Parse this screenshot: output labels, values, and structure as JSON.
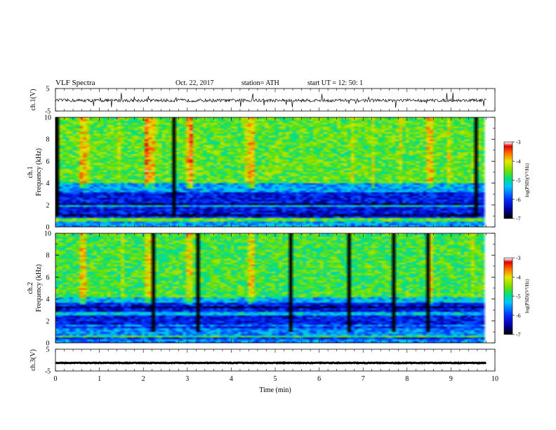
{
  "header": {
    "title": "VLF  Spectra",
    "date": "Oct. 22, 2017",
    "station": "station= ATH",
    "start": "start  UT  =    12: 50: 1"
  },
  "colors": {
    "colormap": [
      "#000000",
      "#0000aa",
      "#0030ff",
      "#00c8ff",
      "#00e080",
      "#70e000",
      "#e8e800",
      "#ff6000",
      "#e00000",
      "#ffffff"
    ]
  },
  "chart_data": [
    {
      "type": "line",
      "id": "ch1-waveform",
      "ylabel": "ch.1(V)",
      "ylim": [
        -5,
        5
      ],
      "yticks": [
        "5",
        "-5"
      ],
      "xlim": [
        0,
        10
      ],
      "summary": {
        "baseline_v": -0.3,
        "noise_amplitude_v": 0.7,
        "spike_max_v": 3.8,
        "spike_min_v": -3.2,
        "data_end_min": 9.8
      }
    },
    {
      "type": "heatmap",
      "id": "ch1-spectrogram",
      "channel_label": "ch.1",
      "ylabel": "Frequency  (kHz)",
      "ylim": [
        0,
        10
      ],
      "yticks": [
        "0",
        "2",
        "4",
        "6",
        "8",
        "10"
      ],
      "xlim": [
        0,
        10
      ],
      "data_end_min": 9.8,
      "colorbar": {
        "label": "log(PSD)(V²/Hz)",
        "range": [
          -7,
          -3
        ],
        "ticks": [
          "-3",
          "-4",
          "-5",
          "-6",
          "-7"
        ]
      },
      "bands_log_psd": [
        {
          "freq_khz": [
            0,
            0.5
          ],
          "level": -5.5
        },
        {
          "freq_khz": [
            0.5,
            0.8
          ],
          "level": -4.6
        },
        {
          "freq_khz": [
            0.8,
            3.2
          ],
          "level": -6.2
        },
        {
          "freq_khz": [
            3.2,
            4.0
          ],
          "level": -5.5
        },
        {
          "freq_khz": [
            4.0,
            10.0
          ],
          "level": -4.6
        }
      ],
      "hot_spots_min": [
        0.6,
        2.15,
        3.05,
        4.45,
        8.5
      ]
    },
    {
      "type": "heatmap",
      "id": "ch2-spectrogram",
      "channel_label": "ch.2",
      "ylabel": "Frequency  (kHz)",
      "ylim": [
        0,
        10
      ],
      "yticks": [
        "0",
        "2",
        "4",
        "6",
        "8",
        "10"
      ],
      "xlim": [
        0,
        10
      ],
      "data_end_min": 9.8,
      "colorbar": {
        "label": "log(PSD)(V²/Hz)",
        "range": [
          -7,
          -3
        ],
        "ticks": [
          "-3",
          "-4",
          "-5",
          "-6",
          "-7"
        ]
      },
      "bands_log_psd": [
        {
          "freq_khz": [
            0,
            1.7
          ],
          "level": -5.6
        },
        {
          "freq_khz": [
            1.7,
            3.6
          ],
          "level": -6.2
        },
        {
          "freq_khz": [
            3.6,
            4.2
          ],
          "level": -5.4
        },
        {
          "freq_khz": [
            4.2,
            10.0
          ],
          "level": -4.7
        }
      ],
      "hot_spots_min": [
        0.6,
        2.15,
        3.05,
        4.45,
        8.5
      ]
    },
    {
      "type": "line",
      "id": "ch3-waveform",
      "ylabel": "ch.3(V)",
      "ylim": [
        -5,
        5
      ],
      "yticks": [
        "5",
        "-5"
      ],
      "xlim": [
        0,
        10
      ],
      "summary": {
        "baseline_v": -1.3,
        "noise_amplitude_v": 0.15,
        "data_end_min": 9.8
      }
    }
  ],
  "x_axis": {
    "label": "Time  (min)",
    "ticks": [
      "0",
      "1",
      "2",
      "3",
      "4",
      "5",
      "6",
      "7",
      "8",
      "9",
      "10"
    ]
  }
}
